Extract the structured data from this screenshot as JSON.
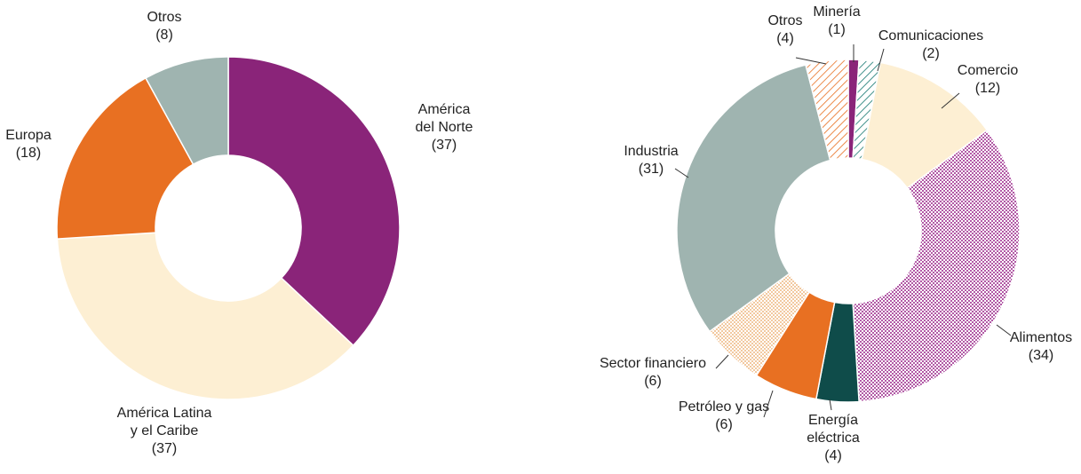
{
  "chart_data": [
    {
      "type": "donut",
      "categories": [
        "América\ndel Norte",
        "América Latina\ny el Caribe",
        "Europa",
        "Otros"
      ],
      "values": [
        37,
        37,
        18,
        8
      ],
      "value_labels": [
        "(37)",
        "(37)",
        "(18)",
        "(8)"
      ],
      "colors": [
        "#8a2479",
        "#fdefd3",
        "#e87022",
        "#9fb4b0"
      ],
      "patterns": [
        "solid",
        "solid",
        "solid",
        "solid"
      ]
    },
    {
      "type": "donut",
      "categories": [
        "Minería",
        "Comunicaciones",
        "Comercio",
        "Alimentos",
        "Energía\neléctrica",
        "Petróleo y gas",
        "Sector financiero",
        "Industria",
        "Otros"
      ],
      "values": [
        1,
        2,
        12,
        34,
        4,
        6,
        6,
        31,
        4
      ],
      "value_labels": [
        "(1)",
        "(2)",
        "(12)",
        "(34)",
        "(4)",
        "(6)",
        "(6)",
        "(31)",
        "(4)"
      ],
      "colors": [
        "#8a2479",
        "#1a7a73",
        "#fdefd3",
        "#b25aa6",
        "#0f4c4a",
        "#e87022",
        "#f2c9a0",
        "#9fb4b0",
        "#e87022"
      ],
      "patterns": [
        "solid",
        "hatch",
        "solid",
        "dots",
        "solid",
        "solid",
        "dots",
        "solid",
        "hatch"
      ]
    }
  ]
}
